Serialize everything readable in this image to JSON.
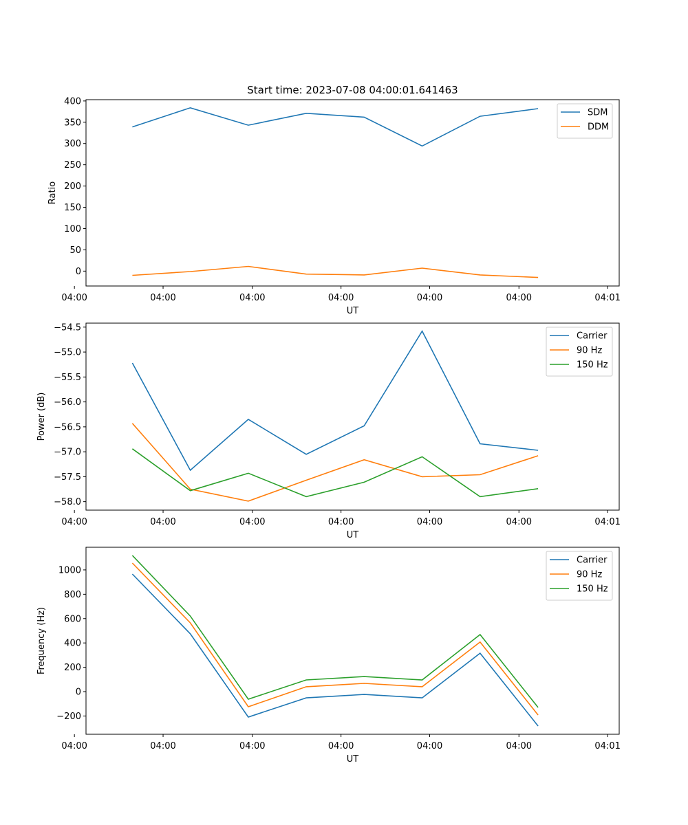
{
  "chart_data": [
    {
      "type": "line",
      "title": "Start time: 2023-07-08 04:00:01.641463",
      "xlabel": "UT",
      "ylabel": "Ratio",
      "x": [
        1,
        2,
        3,
        4,
        5,
        6,
        7,
        8
      ],
      "xlim": [
        0.2,
        9.4
      ],
      "x_ticks": [
        0,
        1.53,
        3.07,
        4.6,
        6.13,
        7.67,
        9.2
      ],
      "x_tick_labels": [
        "04:00",
        "04:00",
        "04:00",
        "04:00",
        "04:00",
        "04:00",
        "04:01"
      ],
      "ylim": [
        -35,
        403
      ],
      "y_ticks": [
        0,
        50,
        100,
        150,
        200,
        250,
        300,
        350,
        400
      ],
      "y_tick_labels": [
        "0",
        "50",
        "100",
        "150",
        "200",
        "250",
        "300",
        "350",
        "400"
      ],
      "legend": "top-right",
      "grid": false,
      "series": [
        {
          "name": "SDM",
          "color": "#1f77b4",
          "values": [
            339,
            384,
            343,
            371,
            362,
            294,
            364,
            382
          ]
        },
        {
          "name": "DDM",
          "color": "#ff7f0e",
          "values": [
            -10,
            -1,
            11,
            -7,
            -9,
            7,
            -9,
            -15
          ]
        }
      ]
    },
    {
      "type": "line",
      "title": "",
      "xlabel": "UT",
      "ylabel": "Power (dB)",
      "x": [
        1,
        2,
        3,
        4,
        5,
        6,
        7,
        8
      ],
      "xlim": [
        0.2,
        9.4
      ],
      "x_ticks": [
        0,
        1.53,
        3.07,
        4.6,
        6.13,
        7.67,
        9.2
      ],
      "x_tick_labels": [
        "04:00",
        "04:00",
        "04:00",
        "04:00",
        "04:00",
        "04:00",
        "04:01"
      ],
      "ylim": [
        -58.17,
        -54.42
      ],
      "y_ticks": [
        -58.0,
        -57.5,
        -57.0,
        -56.5,
        -56.0,
        -55.5,
        -55.0,
        -54.5
      ],
      "y_tick_labels": [
        "−58.0",
        "−57.5",
        "−57.0",
        "−56.5",
        "−56.0",
        "−55.5",
        "−55.0",
        "−54.5"
      ],
      "legend": "top-right",
      "grid": false,
      "series": [
        {
          "name": "Carrier",
          "color": "#1f77b4",
          "values": [
            -55.22,
            -57.37,
            -56.35,
            -57.05,
            -56.48,
            -54.58,
            -56.84,
            -56.97
          ]
        },
        {
          "name": "90 Hz",
          "color": "#ff7f0e",
          "values": [
            -56.43,
            -57.75,
            -57.99,
            -57.57,
            -57.16,
            -57.5,
            -57.46,
            -57.08
          ]
        },
        {
          "name": "150 Hz",
          "color": "#2ca02c",
          "values": [
            -56.94,
            -57.78,
            -57.43,
            -57.9,
            -57.61,
            -57.1,
            -57.9,
            -57.74
          ]
        }
      ]
    },
    {
      "type": "line",
      "title": "",
      "xlabel": "UT",
      "ylabel": "Frequency (Hz)",
      "x": [
        1,
        2,
        3,
        4,
        5,
        6,
        7,
        8
      ],
      "xlim": [
        0.2,
        9.4
      ],
      "x_ticks": [
        0,
        1.53,
        3.07,
        4.6,
        6.13,
        7.67,
        9.2
      ],
      "x_tick_labels": [
        "04:00",
        "04:00",
        "04:00",
        "04:00",
        "04:00",
        "04:00",
        "04:01"
      ],
      "ylim": [
        -350,
        1186
      ],
      "y_ticks": [
        -200,
        0,
        200,
        400,
        600,
        800,
        1000
      ],
      "y_tick_labels": [
        "−200",
        "0",
        "200",
        "400",
        "600",
        "800",
        "1000"
      ],
      "legend": "top-right",
      "grid": false,
      "series": [
        {
          "name": "Carrier",
          "color": "#1f77b4",
          "values": [
            966,
            475,
            -209,
            -51,
            -23,
            -51,
            316,
            -282
          ]
        },
        {
          "name": "90 Hz",
          "color": "#ff7f0e",
          "values": [
            1056,
            565,
            -124,
            40,
            68,
            40,
            407,
            -192
          ]
        },
        {
          "name": "150 Hz",
          "color": "#2ca02c",
          "values": [
            1119,
            621,
            -62,
            96,
            124,
            96,
            469,
            -130
          ]
        }
      ]
    }
  ]
}
